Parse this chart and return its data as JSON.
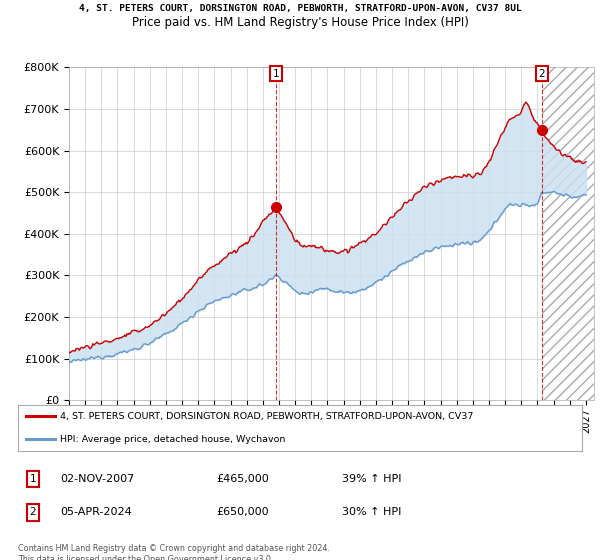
{
  "title_line1": "4, ST. PETERS COURT, DORSINGTON ROAD, PEBWORTH, STRATFORD-UPON-AVON, CV37 8UL",
  "title_line2": "Price paid vs. HM Land Registry's House Price Index (HPI)",
  "ylim": [
    0,
    800000
  ],
  "xlim_start": 1995.0,
  "xlim_end": 2027.5,
  "yticks": [
    0,
    100000,
    200000,
    300000,
    400000,
    500000,
    600000,
    700000,
    800000
  ],
  "ytick_labels": [
    "£0",
    "£100K",
    "£200K",
    "£300K",
    "£400K",
    "£500K",
    "£600K",
    "£700K",
    "£800K"
  ],
  "xtick_years": [
    1995,
    1996,
    1997,
    1998,
    1999,
    2000,
    2001,
    2002,
    2003,
    2004,
    2005,
    2006,
    2007,
    2008,
    2009,
    2010,
    2011,
    2012,
    2013,
    2014,
    2015,
    2016,
    2017,
    2018,
    2019,
    2020,
    2021,
    2022,
    2023,
    2024,
    2025,
    2026,
    2027
  ],
  "transaction1_x": 2007.84,
  "transaction1_y": 465000,
  "transaction1_label": "1",
  "transaction2_x": 2024.26,
  "transaction2_y": 650000,
  "transaction2_label": "2",
  "red_color": "#cc0000",
  "blue_color": "#6699cc",
  "fill_blue_color": "#cce0f0",
  "dashed_vline_color": "#cc0000",
  "grid_color": "#cccccc",
  "legend_label_red": "4, ST. PETERS COURT, DORSINGTON ROAD, PEBWORTH, STRATFORD-UPON-AVON, CV37",
  "legend_label_blue": "HPI: Average price, detached house, Wychavon",
  "footer": "Contains HM Land Registry data © Crown copyright and database right 2024.\nThis data is licensed under the Open Government Licence v3.0.",
  "bg_color": "#ffffff",
  "plot_bg_color": "#ffffff",
  "hpi_anchors": [
    [
      1995.0,
      92000
    ],
    [
      1996.0,
      98000
    ],
    [
      1997.0,
      105000
    ],
    [
      1998.0,
      112000
    ],
    [
      1999.0,
      122000
    ],
    [
      2000.0,
      138000
    ],
    [
      2001.0,
      158000
    ],
    [
      2002.0,
      185000
    ],
    [
      2003.0,
      215000
    ],
    [
      2004.0,
      238000
    ],
    [
      2005.0,
      252000
    ],
    [
      2006.0,
      265000
    ],
    [
      2007.0,
      278000
    ],
    [
      2007.84,
      300000
    ],
    [
      2008.0,
      298000
    ],
    [
      2008.5,
      280000
    ],
    [
      2009.0,
      262000
    ],
    [
      2009.5,
      255000
    ],
    [
      2010.0,
      262000
    ],
    [
      2010.5,
      268000
    ],
    [
      2011.0,
      268000
    ],
    [
      2011.5,
      262000
    ],
    [
      2012.0,
      260000
    ],
    [
      2012.5,
      260000
    ],
    [
      2013.0,
      265000
    ],
    [
      2013.5,
      272000
    ],
    [
      2014.0,
      282000
    ],
    [
      2014.5,
      295000
    ],
    [
      2015.0,
      310000
    ],
    [
      2015.5,
      322000
    ],
    [
      2016.0,
      335000
    ],
    [
      2016.5,
      345000
    ],
    [
      2017.0,
      355000
    ],
    [
      2017.5,
      362000
    ],
    [
      2018.0,
      368000
    ],
    [
      2018.5,
      372000
    ],
    [
      2019.0,
      375000
    ],
    [
      2019.5,
      378000
    ],
    [
      2020.0,
      375000
    ],
    [
      2020.5,
      385000
    ],
    [
      2021.0,
      405000
    ],
    [
      2021.5,
      435000
    ],
    [
      2022.0,
      462000
    ],
    [
      2022.5,
      472000
    ],
    [
      2023.0,
      468000
    ],
    [
      2023.5,
      468000
    ],
    [
      2024.0,
      472000
    ],
    [
      2024.26,
      500000
    ],
    [
      2025.0,
      500000
    ],
    [
      2025.5,
      495000
    ],
    [
      2026.0,
      490000
    ],
    [
      2026.5,
      488000
    ],
    [
      2027.0,
      490000
    ]
  ],
  "red_anchors": [
    [
      1995.0,
      118000
    ],
    [
      1996.0,
      128000
    ],
    [
      1997.0,
      138000
    ],
    [
      1998.0,
      148000
    ],
    [
      1999.0,
      162000
    ],
    [
      2000.0,
      180000
    ],
    [
      2001.0,
      208000
    ],
    [
      2002.0,
      245000
    ],
    [
      2003.0,
      288000
    ],
    [
      2004.0,
      325000
    ],
    [
      2005.0,
      352000
    ],
    [
      2006.0,
      378000
    ],
    [
      2006.5,
      400000
    ],
    [
      2007.0,
      430000
    ],
    [
      2007.84,
      465000
    ],
    [
      2008.0,
      450000
    ],
    [
      2008.5,
      420000
    ],
    [
      2009.0,
      385000
    ],
    [
      2009.5,
      368000
    ],
    [
      2010.0,
      372000
    ],
    [
      2010.5,
      368000
    ],
    [
      2011.0,
      358000
    ],
    [
      2011.5,
      355000
    ],
    [
      2012.0,
      358000
    ],
    [
      2012.5,
      362000
    ],
    [
      2013.0,
      375000
    ],
    [
      2013.5,
      388000
    ],
    [
      2014.0,
      402000
    ],
    [
      2014.5,
      420000
    ],
    [
      2015.0,
      440000
    ],
    [
      2015.5,
      458000
    ],
    [
      2016.0,
      478000
    ],
    [
      2016.5,
      495000
    ],
    [
      2017.0,
      510000
    ],
    [
      2017.5,
      522000
    ],
    [
      2018.0,
      530000
    ],
    [
      2018.5,
      535000
    ],
    [
      2019.0,
      538000
    ],
    [
      2019.5,
      540000
    ],
    [
      2020.0,
      535000
    ],
    [
      2020.5,
      548000
    ],
    [
      2021.0,
      572000
    ],
    [
      2021.5,
      612000
    ],
    [
      2022.0,
      655000
    ],
    [
      2022.5,
      682000
    ],
    [
      2023.0,
      695000
    ],
    [
      2023.3,
      718000
    ],
    [
      2023.5,
      700000
    ],
    [
      2023.8,
      672000
    ],
    [
      2024.0,
      660000
    ],
    [
      2024.26,
      650000
    ],
    [
      2024.5,
      635000
    ],
    [
      2025.0,
      610000
    ],
    [
      2025.5,
      595000
    ],
    [
      2026.0,
      582000
    ],
    [
      2026.5,
      572000
    ],
    [
      2027.0,
      570000
    ]
  ]
}
